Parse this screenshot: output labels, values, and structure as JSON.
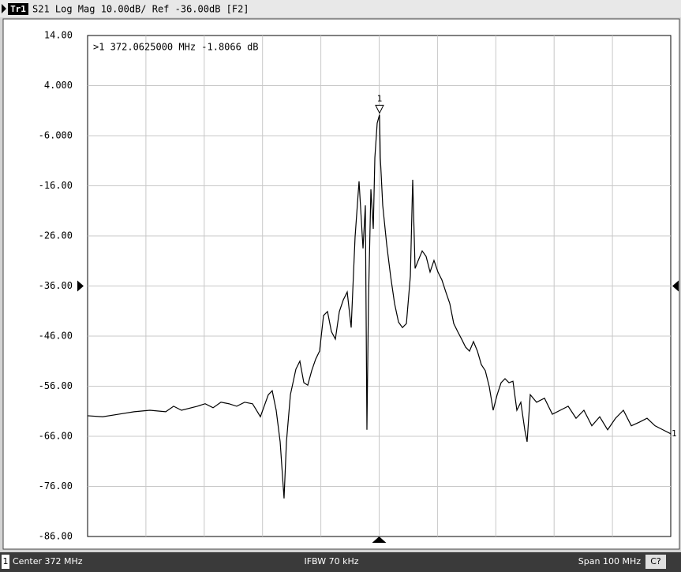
{
  "chart_data": {
    "type": "line",
    "trace_badge": "Tr1",
    "title": "S21 Log Mag 10.00dB/ Ref -36.00dB [F2]",
    "trace_number": "1",
    "marker": {
      "label": "1",
      "text": ">1  372.0625000 MHz -1.8066 dB",
      "x": 372.0625,
      "value": -1.8066
    },
    "ref_level": -36,
    "xlim": [
      322,
      422
    ],
    "ylim": [
      -86,
      14
    ],
    "yticks": [
      {
        "value": 14,
        "label": "14.00"
      },
      {
        "value": 4,
        "label": "4.000"
      },
      {
        "value": -6,
        "label": "-6.000"
      },
      {
        "value": -16,
        "label": "-16.00"
      },
      {
        "value": -26,
        "label": "-26.00"
      },
      {
        "value": -36,
        "label": "-36.00"
      },
      {
        "value": -46,
        "label": "-46.00"
      },
      {
        "value": -56,
        "label": "-56.00"
      },
      {
        "value": -66,
        "label": "-66.00"
      },
      {
        "value": -76,
        "label": "-76.00"
      },
      {
        "value": -86,
        "label": "-86.00"
      }
    ],
    "grid": true,
    "x": [
      322.0,
      324.57,
      327.28,
      329.98,
      332.69,
      335.4,
      336.75,
      338.1,
      340.81,
      342.16,
      343.52,
      344.87,
      346.22,
      347.57,
      348.93,
      350.28,
      350.96,
      351.63,
      352.99,
      353.66,
      354.34,
      355.02,
      355.69,
      356.1,
      356.78,
      357.72,
      358.4,
      359.08,
      359.75,
      360.43,
      361.11,
      361.78,
      362.46,
      363.14,
      363.81,
      364.49,
      365.17,
      365.84,
      366.52,
      367.2,
      367.87,
      368.55,
      369.23,
      369.63,
      369.9,
      370.17,
      370.58,
      370.99,
      371.26,
      371.66,
      372.06,
      372.2,
      372.61,
      373.29,
      373.96,
      374.64,
      375.32,
      375.99,
      376.67,
      377.35,
      377.75,
      378.16,
      378.7,
      379.38,
      380.05,
      380.73,
      381.4,
      382.08,
      382.76,
      383.43,
      384.11,
      384.79,
      385.46,
      386.14,
      386.82,
      387.49,
      388.17,
      388.85,
      389.52,
      390.2,
      390.88,
      391.55,
      392.23,
      392.91,
      393.58,
      394.26,
      394.94,
      395.61,
      396.29,
      396.97,
      397.37,
      397.91,
      398.99,
      400.35,
      401.7,
      403.05,
      404.41,
      405.76,
      407.11,
      408.47,
      409.82,
      411.18,
      412.53,
      413.88,
      415.24,
      416.59,
      417.94,
      419.3,
      420.65,
      422.0
    ],
    "series": [
      {
        "name": "Tr1",
        "color": "#000000",
        "values": [
          -61.9,
          -62.1,
          -61.6,
          -61.1,
          -60.8,
          -61.1,
          -60.0,
          -60.8,
          -60.0,
          -59.5,
          -60.3,
          -59.2,
          -59.5,
          -60.0,
          -59.2,
          -59.5,
          -60.8,
          -62.1,
          -57.7,
          -56.9,
          -60.8,
          -67.1,
          -78.4,
          -67.1,
          -57.7,
          -52.6,
          -51.0,
          -55.3,
          -55.8,
          -52.9,
          -50.6,
          -49.0,
          -41.9,
          -41.1,
          -45.1,
          -46.6,
          -41.1,
          -38.8,
          -37.2,
          -44.3,
          -26.2,
          -15.1,
          -28.5,
          -19.9,
          -64.7,
          -38.8,
          -16.7,
          -24.6,
          -10.4,
          -3.5,
          -1.81,
          -10.4,
          -19.9,
          -27.7,
          -34.0,
          -39.5,
          -43.2,
          -44.3,
          -43.5,
          -34.0,
          -14.8,
          -32.5,
          -30.9,
          -29.0,
          -30.1,
          -33.2,
          -30.9,
          -33.2,
          -34.8,
          -37.2,
          -39.5,
          -43.5,
          -45.1,
          -46.6,
          -48.2,
          -49.0,
          -47.1,
          -49.0,
          -51.7,
          -52.9,
          -56.1,
          -60.8,
          -57.7,
          -55.3,
          -54.5,
          -55.3,
          -55.0,
          -60.8,
          -59.2,
          -64.7,
          -67.1,
          -57.7,
          -59.2,
          -58.4,
          -61.6,
          -60.8,
          -60.0,
          -62.4,
          -60.8,
          -63.9,
          -62.1,
          -64.7,
          -62.4,
          -60.8,
          -63.9,
          -63.2,
          -62.4,
          -63.9,
          -64.7,
          -65.5
        ]
      }
    ],
    "status": {
      "channel": "1",
      "center": "Center 372 MHz",
      "ifbw": "IFBW 70 kHz",
      "span": "Span 100 MHz",
      "badge": "C?"
    }
  }
}
